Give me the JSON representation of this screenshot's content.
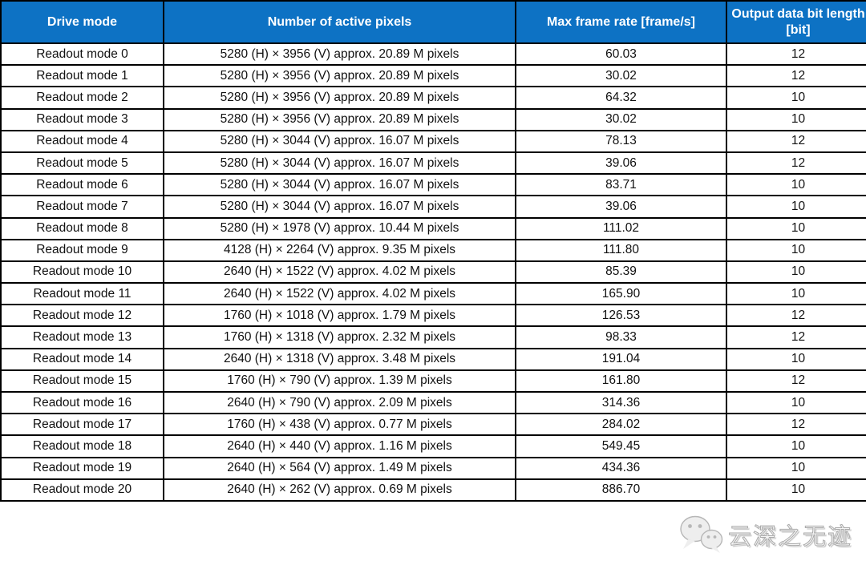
{
  "chart_data": {
    "type": "table",
    "columns": [
      "Drive mode",
      "Number of active pixels",
      "Max frame rate [frame/s]",
      "Output data bit length [bit]"
    ],
    "rows": [
      [
        "Readout mode 0",
        "5280 (H) × 3956 (V) approx. 20.89 M pixels",
        "60.03",
        "12"
      ],
      [
        "Readout mode 1",
        "5280 (H) × 3956 (V) approx. 20.89 M pixels",
        "30.02",
        "12"
      ],
      [
        "Readout mode 2",
        "5280 (H) × 3956 (V) approx. 20.89 M pixels",
        "64.32",
        "10"
      ],
      [
        "Readout mode 3",
        "5280 (H) × 3956 (V) approx. 20.89 M pixels",
        "30.02",
        "10"
      ],
      [
        "Readout mode 4",
        "5280 (H) × 3044 (V) approx. 16.07 M pixels",
        "78.13",
        "12"
      ],
      [
        "Readout mode 5",
        "5280 (H) × 3044 (V) approx. 16.07 M pixels",
        "39.06",
        "12"
      ],
      [
        "Readout mode 6",
        "5280 (H) × 3044 (V) approx. 16.07 M pixels",
        "83.71",
        "10"
      ],
      [
        "Readout mode 7",
        "5280 (H) × 3044 (V) approx. 16.07 M pixels",
        "39.06",
        "10"
      ],
      [
        "Readout mode 8",
        "5280 (H) × 1978 (V) approx. 10.44 M pixels",
        "111.02",
        "10"
      ],
      [
        "Readout mode 9",
        "4128 (H) × 2264 (V) approx. 9.35 M pixels",
        "111.80",
        "10"
      ],
      [
        "Readout mode 10",
        "2640 (H) × 1522 (V) approx. 4.02 M pixels",
        "85.39",
        "10"
      ],
      [
        "Readout mode 11",
        "2640 (H) × 1522 (V) approx. 4.02 M pixels",
        "165.90",
        "10"
      ],
      [
        "Readout mode 12",
        "1760 (H) × 1018 (V) approx. 1.79 M pixels",
        "126.53",
        "12"
      ],
      [
        "Readout mode 13",
        "1760 (H) × 1318 (V) approx. 2.32 M pixels",
        "98.33",
        "12"
      ],
      [
        "Readout mode 14",
        "2640 (H) × 1318 (V) approx. 3.48 M pixels",
        "191.04",
        "10"
      ],
      [
        "Readout mode 15",
        "1760 (H) × 790 (V) approx. 1.39 M pixels",
        "161.80",
        "12"
      ],
      [
        "Readout mode 16",
        "2640 (H) × 790 (V) approx. 2.09 M pixels",
        "314.36",
        "10"
      ],
      [
        "Readout mode 17",
        "1760 (H) × 438 (V) approx. 0.77 M pixels",
        "284.02",
        "12"
      ],
      [
        "Readout mode 18",
        "2640 (H) × 440 (V) approx. 1.16 M pixels",
        "549.45",
        "10"
      ],
      [
        "Readout mode 19",
        "2640 (H) × 564 (V) approx. 1.49 M pixels",
        "434.36",
        "10"
      ],
      [
        "Readout mode 20",
        "2640 (H) × 262 (V) approx. 0.69 M pixels",
        "886.70",
        "10"
      ]
    ]
  },
  "watermark": {
    "text": "云深之无迹",
    "icon": "wechat-icon"
  },
  "colors": {
    "header_bg": "#0d72c4",
    "header_text": "#ffffff",
    "grid_border": "#000000",
    "body_text": "#111111",
    "row_bg": "#ffffff"
  }
}
